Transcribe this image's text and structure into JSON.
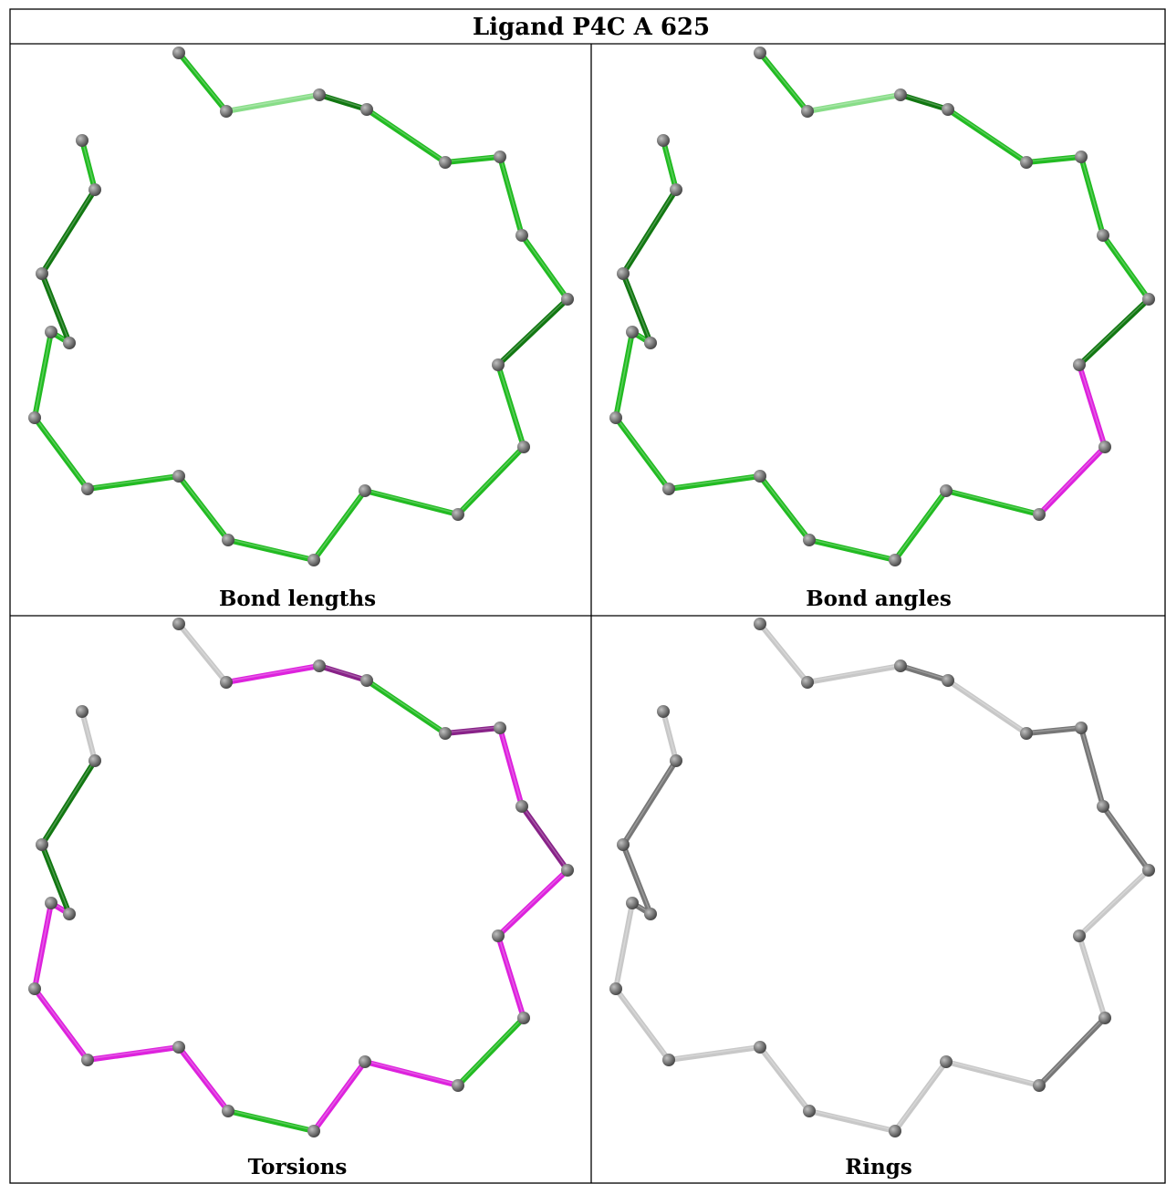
{
  "title": "Ligand P4C A 625",
  "panels": [
    {
      "id": "bond-lengths",
      "caption": "Bond lengths"
    },
    {
      "id": "bond-angles",
      "caption": "Bond angles"
    },
    {
      "id": "torsions",
      "caption": "Torsions"
    },
    {
      "id": "rings",
      "caption": "Rings"
    }
  ],
  "colors": {
    "atom": "#7a7a7a",
    "atom_dark": "#4a4a4a",
    "ok_green": "#22bb22",
    "ok_green_dark": "#117711",
    "outlier_magenta": "#dd22dd",
    "outlier_magenta_dark": "#882288",
    "neutral_light": "#c8c8c8",
    "neutral_dark": "#777777",
    "border": "#000000"
  }
}
